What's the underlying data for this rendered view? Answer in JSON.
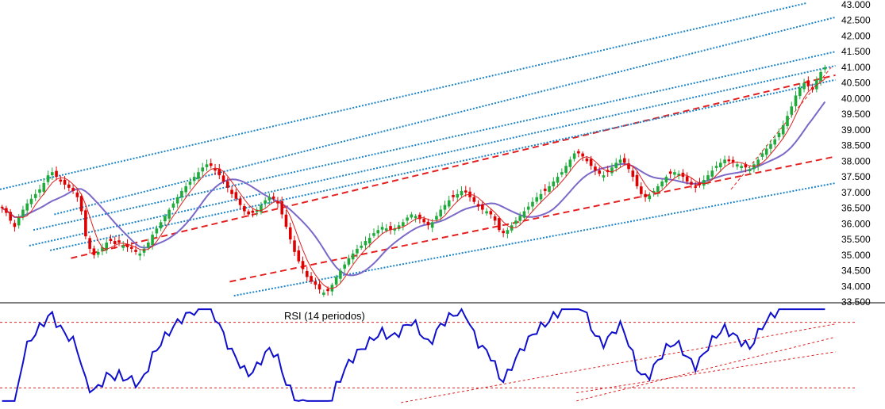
{
  "chart_data": [
    {
      "type": "candlestick",
      "panel": "price",
      "y_axis_side": "right",
      "ylim": [
        33500,
        43000
      ],
      "y_ticks": [
        "33.500",
        "34.000",
        "34.500",
        "35.000",
        "35.500",
        "36.000",
        "36.500",
        "37.000",
        "37.500",
        "38.000",
        "38.500",
        "39.000",
        "39.500",
        "40.000",
        "40.500",
        "41.000",
        "41.500",
        "42.000",
        "42.500",
        "43.000"
      ],
      "y_tick_values": [
        33500,
        34000,
        34500,
        35000,
        35500,
        36000,
        36500,
        37000,
        37500,
        38000,
        38500,
        39000,
        39500,
        40000,
        40500,
        41000,
        41500,
        42000,
        42500,
        43000
      ],
      "bar_count": 200,
      "close": [
        36500,
        36350,
        36100,
        35900,
        36200,
        36450,
        36650,
        36800,
        36950,
        37100,
        37300,
        37550,
        37650,
        37500,
        37350,
        37250,
        37150,
        37050,
        36850,
        36400,
        35600,
        35200,
        35000,
        35100,
        35250,
        35400,
        35450,
        35350,
        35400,
        35300,
        35250,
        35200,
        35100,
        35050,
        35200,
        35400,
        35650,
        35850,
        36050,
        36250,
        36450,
        36650,
        36850,
        37050,
        37200,
        37350,
        37500,
        37650,
        37800,
        37900,
        37850,
        37700,
        37550,
        37350,
        37150,
        36950,
        36800,
        36600,
        36400,
        36300,
        36350,
        36450,
        36600,
        36750,
        36850,
        36800,
        36650,
        36300,
        35900,
        35500,
        35100,
        34800,
        34550,
        34300,
        34150,
        34050,
        33900,
        33800,
        33850,
        34050,
        34300,
        34500,
        34700,
        34900,
        35050,
        35200,
        35300,
        35450,
        35550,
        35700,
        35800,
        35900,
        35850,
        35800,
        35850,
        35950,
        36050,
        36200,
        36300,
        36250,
        36150,
        36050,
        35950,
        36050,
        36250,
        36450,
        36600,
        36750,
        36850,
        36950,
        37050,
        37000,
        36850,
        36700,
        36550,
        36450,
        36400,
        36300,
        36100,
        35800,
        35700,
        35800,
        35950,
        36100,
        36250,
        36400,
        36550,
        36700,
        36850,
        36950,
        37050,
        37200,
        37350,
        37500,
        37650,
        37850,
        38050,
        38250,
        38250,
        38150,
        38000,
        37850,
        37700,
        37600,
        37550,
        37650,
        37800,
        37950,
        38050,
        37950,
        37750,
        37500,
        37200,
        36950,
        36850,
        36900,
        37050,
        37200,
        37350,
        37500,
        37600,
        37650,
        37600,
        37500,
        37350,
        37250,
        37150,
        37250,
        37400,
        37550,
        37700,
        37850,
        37950,
        38050,
        38000,
        37950,
        37900,
        37850,
        37800,
        37750,
        37900,
        38050,
        38250,
        38400,
        38550,
        38700,
        38900,
        39150,
        39450,
        39750,
        40100,
        40350,
        40500,
        40400,
        40300,
        40600,
        40850,
        41000
      ],
      "sma_short": "close moving average, period 5",
      "sma_long": "close moving average, period 14",
      "trendlines": [
        {
          "style": "red-dashed",
          "from": {
            "bar": 17,
            "value": 34900
          },
          "to": {
            "bar": 200,
            "value": 40750
          }
        },
        {
          "style": "red-dashed",
          "from": {
            "bar": 55,
            "value": 34150
          },
          "to": {
            "bar": 200,
            "value": 38150
          }
        },
        {
          "style": "red-thin-dashed",
          "from": {
            "bar": 175,
            "value": 37100
          },
          "to": {
            "bar": 199,
            "value": 41000
          }
        },
        {
          "style": "blue-dotted",
          "from": {
            "bar": 0,
            "value": 37100
          },
          "to": {
            "bar": 193,
            "value": 43050
          }
        },
        {
          "style": "blue-dotted",
          "from": {
            "bar": 13,
            "value": 36300
          },
          "to": {
            "bar": 200,
            "value": 42600
          }
        },
        {
          "style": "blue-dotted",
          "from": {
            "bar": 8,
            "value": 35800
          },
          "to": {
            "bar": 200,
            "value": 41500
          }
        },
        {
          "style": "blue-dotted",
          "from": {
            "bar": 7,
            "value": 35300
          },
          "to": {
            "bar": 200,
            "value": 41050
          }
        },
        {
          "style": "blue-dotted",
          "from": {
            "bar": 12,
            "value": 35150
          },
          "to": {
            "bar": 200,
            "value": 40600
          }
        },
        {
          "style": "blue-dotted",
          "from": {
            "bar": 56,
            "value": 33700
          },
          "to": {
            "bar": 200,
            "value": 37300
          }
        }
      ]
    },
    {
      "type": "line",
      "panel": "rsi",
      "title": "RSI (14 periodos)",
      "ylim": [
        20,
        80
      ],
      "levels": [
        70,
        30
      ],
      "trendlines": [
        {
          "from": {
            "bar": 96,
            "value": 21
          },
          "to": {
            "bar": 200,
            "value": 69
          }
        },
        {
          "from": {
            "bar": 138,
            "value": 22
          },
          "to": {
            "bar": 200,
            "value": 61
          }
        },
        {
          "from": {
            "bar": 138,
            "value": 27
          },
          "to": {
            "bar": 200,
            "value": 52
          }
        }
      ]
    }
  ],
  "colors": {
    "candle_up": "#1faa3a",
    "candle_down": "#e00000",
    "sma_short": "#e02020",
    "sma_long": "#7b68c8",
    "channel_red": "#e42020",
    "channel_blue": "#1b84c8",
    "rsi_line": "#1010cc",
    "rsi_levels": "#d92020"
  }
}
